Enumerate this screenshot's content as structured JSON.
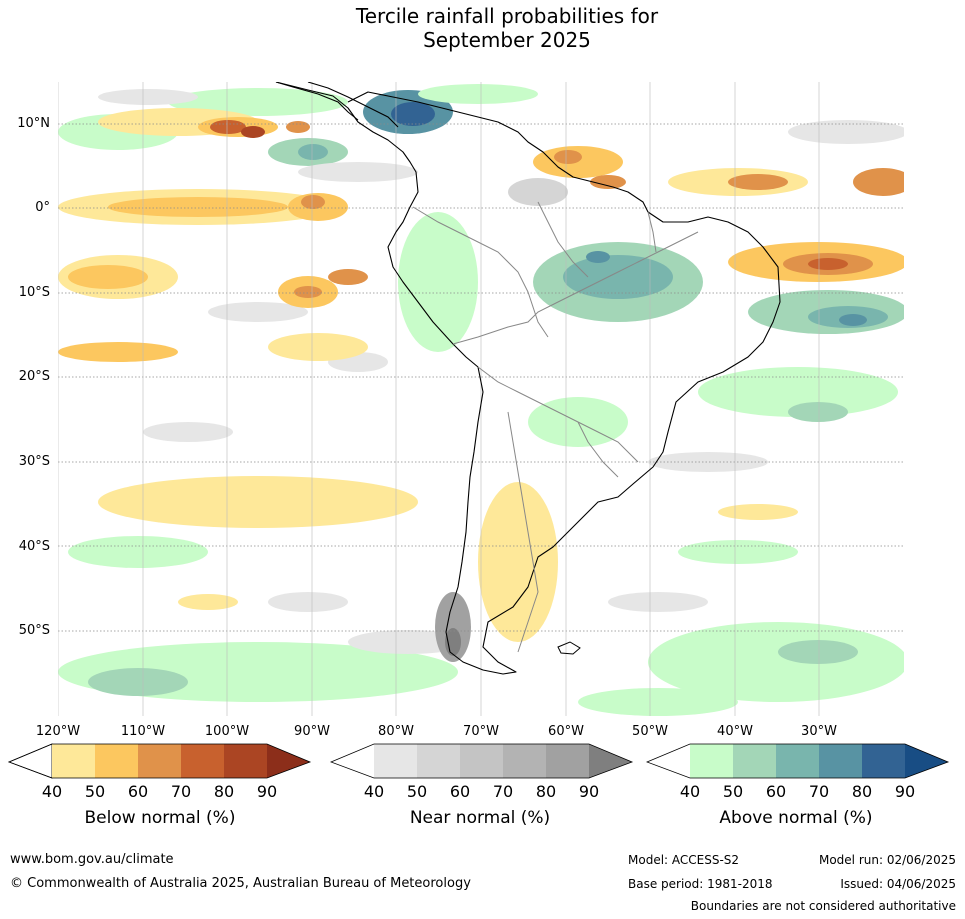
{
  "title_line1": "Tercile rainfall probabilities for",
  "title_line2": "September 2025",
  "map": {
    "lat_labels": [
      "10°N",
      "0°",
      "10°S",
      "20°S",
      "30°S",
      "40°S",
      "50°S"
    ],
    "lon_labels": [
      "120°W",
      "110°W",
      "100°W",
      "90°W",
      "80°W",
      "70°W",
      "60°W",
      "50°W",
      "40°W",
      "30°W"
    ]
  },
  "legends": [
    {
      "title": "Below normal (%)",
      "ticks": [
        "40",
        "50",
        "60",
        "70",
        "80",
        "90"
      ],
      "colors": [
        "#ffffff",
        "#fee899",
        "#fcc75f",
        "#e0924a",
        "#c8612e",
        "#ab4523",
        "#8c2e1a"
      ]
    },
    {
      "title": "Near normal (%)",
      "ticks": [
        "40",
        "50",
        "60",
        "70",
        "80",
        "90"
      ],
      "colors": [
        "#ffffff",
        "#e6e6e6",
        "#d5d5d5",
        "#c4c4c4",
        "#b3b3b3",
        "#a1a1a1",
        "#7f7f7f"
      ]
    },
    {
      "title": "Above normal (%)",
      "ticks": [
        "40",
        "50",
        "60",
        "70",
        "80",
        "90"
      ],
      "colors": [
        "#ffffff",
        "#c8fcc9",
        "#a3d6b7",
        "#79b5ad",
        "#5893a3",
        "#326393",
        "#184d84"
      ]
    }
  ],
  "footer": {
    "website": "www.bom.gov.au/climate",
    "copyright": "© Commonwealth of Australia 2025, Australian Bureau of Meteorology",
    "model": "Model: ACCESS-S2",
    "base_period": "Base period: 1981-2018",
    "model_run": "Model run: 02/06/2025",
    "issued": "Issued: 04/06/2025",
    "disclaimer": "Boundaries are not considered authoritative"
  }
}
